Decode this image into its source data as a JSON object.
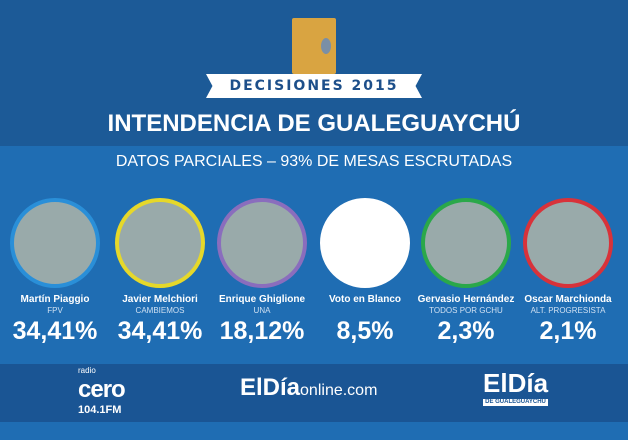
{
  "header": {
    "badge": "DECISIONES 2015",
    "title": "INTENDENCIA DE GUALEGUAYCHÚ",
    "subtitle": "DATOS PARCIALES –  93% DE MESAS ESCRUTADAS"
  },
  "candidates": [
    {
      "name": "Martín Piaggio",
      "party": "FPV",
      "percent": "34,41%",
      "color": "#2a8fd8"
    },
    {
      "name": "Javier Melchiori",
      "party": "CAMBIEMOS",
      "percent": "34,41%",
      "color": "#e6d82a"
    },
    {
      "name": "Enrique Ghiglione",
      "party": "UNA",
      "percent": "18,12%",
      "color": "#8a6dbd"
    },
    {
      "name": "Voto en Blanco",
      "party": "",
      "percent": "8,5%",
      "color": "#ffffff"
    },
    {
      "name": "Gervasio Hernández",
      "party": "TODOS POR GCHU",
      "percent": "2,3%",
      "color": "#2aa84a"
    },
    {
      "name": "Oscar Marchionda",
      "party": "ALT. PROGRESISTA",
      "percent": "2,1%",
      "color": "#d8323a"
    }
  ],
  "footer": {
    "radio_small": "radio",
    "radio_name": "cero",
    "radio_freq": "104.1FM",
    "site_brand": "ElDía",
    "site_suffix": "online.com",
    "paper_brand": "ElDía",
    "paper_sub": "DE GUALEGUAYCHÚ"
  }
}
